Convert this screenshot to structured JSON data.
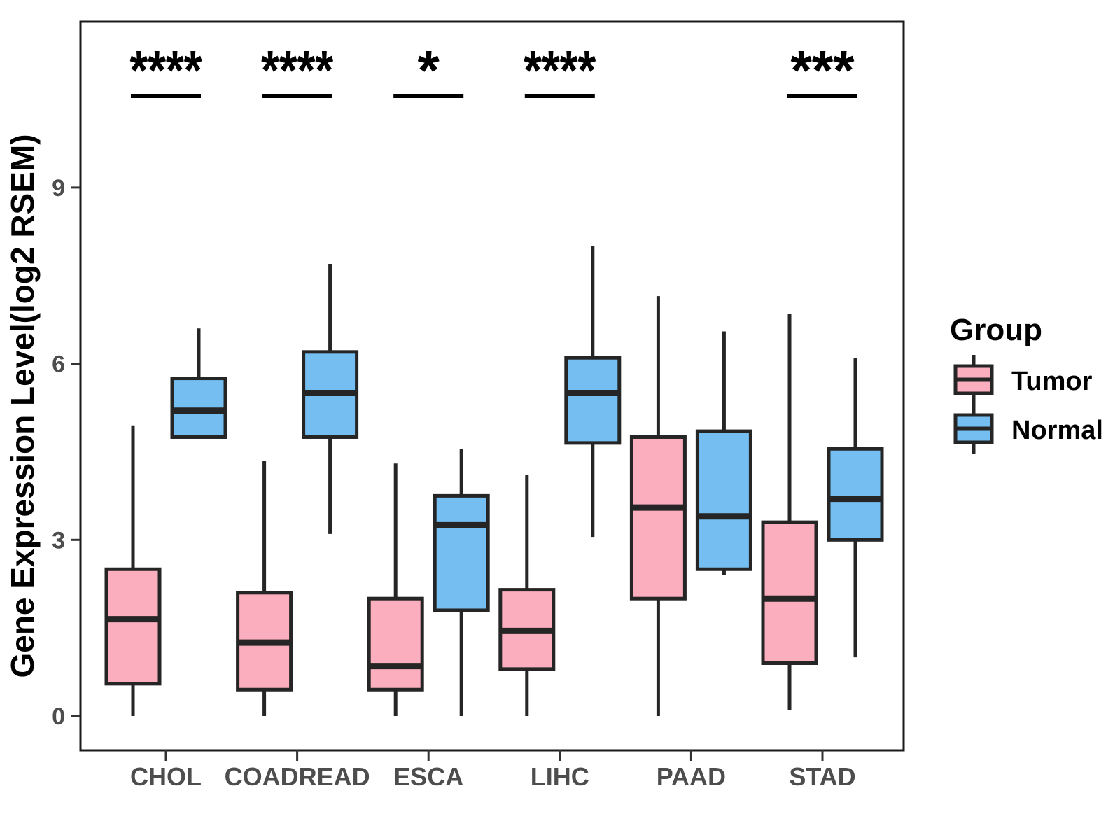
{
  "chart_data": {
    "type": "boxplot",
    "title": "",
    "xlabel": "",
    "ylabel": "Gene Expression Level(log2 RSEM)",
    "categories": [
      "CHOL",
      "COADREAD",
      "ESCA",
      "LIHC",
      "PAAD",
      "STAD"
    ],
    "legend": {
      "title": "Group",
      "position": "right"
    },
    "groups": [
      {
        "name": "Tumor",
        "fill": "#FBAEBE"
      },
      {
        "name": "Normal",
        "fill": "#74BEF2"
      }
    ],
    "y_axis": {
      "ticks": [
        0,
        3,
        6,
        9
      ],
      "range": [
        -0.6,
        11.85
      ],
      "grid": false
    },
    "significance": [
      {
        "category": "CHOL",
        "stars": "****"
      },
      {
        "category": "COADREAD",
        "stars": "****"
      },
      {
        "category": "ESCA",
        "stars": "*"
      },
      {
        "category": "LIHC",
        "stars": "****"
      },
      {
        "category": "PAAD",
        "stars": null
      },
      {
        "category": "STAD",
        "stars": "***"
      }
    ],
    "series": [
      {
        "name": "Tumor",
        "boxes": [
          {
            "category": "CHOL",
            "min": 0.0,
            "q1": 0.55,
            "median": 1.65,
            "q3": 2.5,
            "max": 4.95
          },
          {
            "category": "COADREAD",
            "min": 0.0,
            "q1": 0.45,
            "median": 1.25,
            "q3": 2.1,
            "max": 4.35
          },
          {
            "category": "ESCA",
            "min": 0.0,
            "q1": 0.45,
            "median": 0.85,
            "q3": 2.0,
            "max": 4.3
          },
          {
            "category": "LIHC",
            "min": 0.0,
            "q1": 0.8,
            "median": 1.45,
            "q3": 2.15,
            "max": 4.1
          },
          {
            "category": "PAAD",
            "min": 0.0,
            "q1": 2.0,
            "median": 3.55,
            "q3": 4.75,
            "max": 7.15
          },
          {
            "category": "STAD",
            "min": 0.1,
            "q1": 0.9,
            "median": 2.0,
            "q3": 3.3,
            "max": 6.85
          }
        ]
      },
      {
        "name": "Normal",
        "boxes": [
          {
            "category": "CHOL",
            "min": 4.75,
            "q1": 4.75,
            "median": 5.2,
            "q3": 5.75,
            "max": 6.6
          },
          {
            "category": "COADREAD",
            "min": 3.1,
            "q1": 4.75,
            "median": 5.5,
            "q3": 6.2,
            "max": 7.7
          },
          {
            "category": "ESCA",
            "min": 0.0,
            "q1": 1.8,
            "median": 3.25,
            "q3": 3.75,
            "max": 4.55
          },
          {
            "category": "LIHC",
            "min": 3.05,
            "q1": 4.65,
            "median": 5.5,
            "q3": 6.1,
            "max": 8.0
          },
          {
            "category": "PAAD",
            "min": 2.4,
            "q1": 2.5,
            "median": 3.4,
            "q3": 4.85,
            "max": 6.55
          },
          {
            "category": "STAD",
            "min": 1.0,
            "q1": 3.0,
            "median": 3.7,
            "q3": 4.55,
            "max": 6.1
          }
        ]
      }
    ],
    "colors": {
      "box_outline": "#252525",
      "axis_text": "#4d4d4d",
      "panel_border": "#1a1a1a",
      "significance_text": "#000000"
    }
  }
}
